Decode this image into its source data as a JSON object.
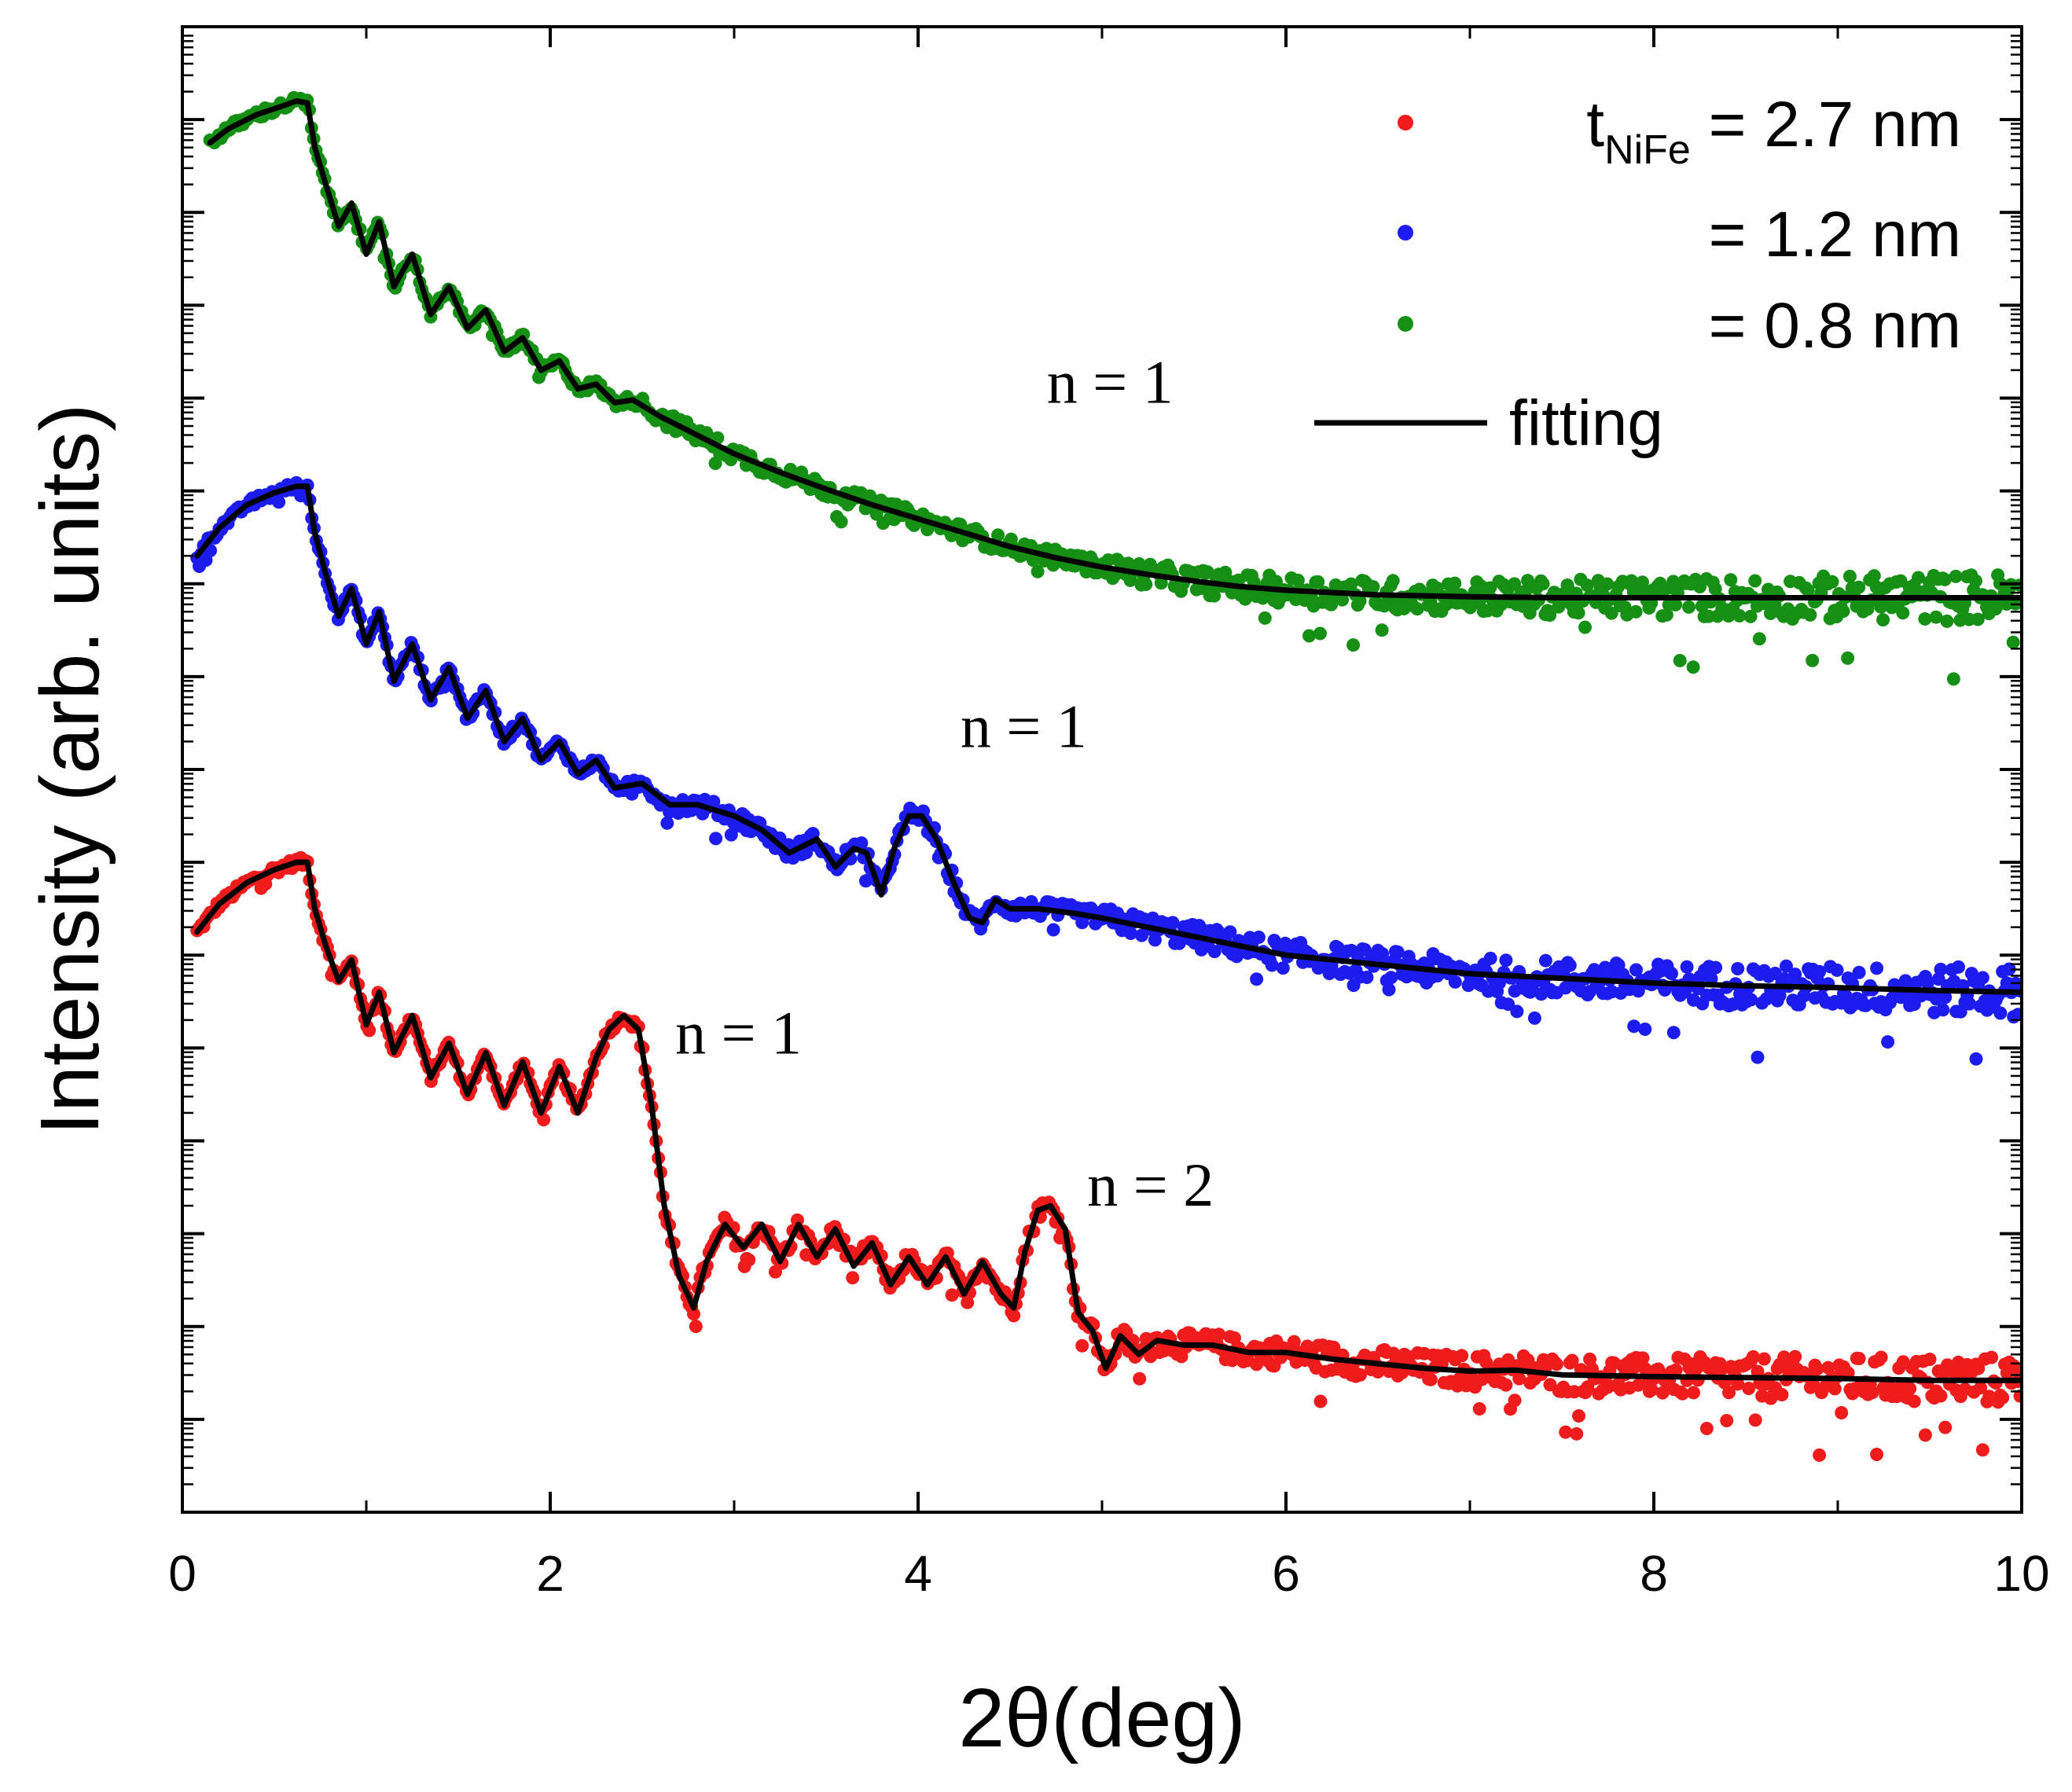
{
  "chart_data": {
    "type": "line",
    "title": "",
    "xlabel": "2θ(deg)",
    "ylabel": "Intensity (arb. units)",
    "xlim": [
      0,
      10
    ],
    "ylim": [
      0,
      16
    ],
    "x_ticks": [
      "0",
      "2",
      "4",
      "6",
      "8",
      "10"
    ],
    "grid": false,
    "legend_position": "top-right",
    "series": [
      {
        "name": "t_NiFe = 2.7 nm",
        "legend_label": {
          "prefix": "t",
          "sub": "NiFe",
          "suffix": " = 2.7 nm"
        },
        "color": "#ee1c1c",
        "baseline": 1.5,
        "points": [
          [
            0.08,
            6.25
          ],
          [
            0.2,
            6.55
          ],
          [
            0.35,
            6.78
          ],
          [
            0.5,
            6.92
          ],
          [
            0.62,
            7.0
          ],
          [
            0.68,
            7.0
          ],
          [
            0.72,
            6.5
          ],
          [
            0.78,
            6.1
          ],
          [
            0.85,
            5.72
          ],
          [
            0.92,
            5.95
          ],
          [
            1.0,
            5.25
          ],
          [
            1.07,
            5.6
          ],
          [
            1.15,
            4.95
          ],
          [
            1.25,
            5.35
          ],
          [
            1.35,
            4.68
          ],
          [
            1.45,
            5.05
          ],
          [
            1.55,
            4.5
          ],
          [
            1.65,
            4.95
          ],
          [
            1.75,
            4.38
          ],
          [
            1.85,
            4.85
          ],
          [
            1.95,
            4.3
          ],
          [
            2.05,
            4.8
          ],
          [
            2.15,
            4.3
          ],
          [
            2.25,
            4.9
          ],
          [
            2.32,
            5.2
          ],
          [
            2.4,
            5.35
          ],
          [
            2.48,
            5.2
          ],
          [
            2.55,
            4.4
          ],
          [
            2.62,
            3.3
          ],
          [
            2.7,
            2.55
          ],
          [
            2.78,
            2.2
          ],
          [
            2.85,
            2.7
          ],
          [
            2.95,
            3.1
          ],
          [
            3.05,
            2.85
          ],
          [
            3.15,
            3.1
          ],
          [
            3.25,
            2.7
          ],
          [
            3.35,
            3.1
          ],
          [
            3.45,
            2.75
          ],
          [
            3.55,
            3.05
          ],
          [
            3.65,
            2.65
          ],
          [
            3.75,
            2.9
          ],
          [
            3.85,
            2.45
          ],
          [
            3.95,
            2.75
          ],
          [
            4.05,
            2.45
          ],
          [
            4.15,
            2.75
          ],
          [
            4.25,
            2.35
          ],
          [
            4.35,
            2.7
          ],
          [
            4.45,
            2.35
          ],
          [
            4.52,
            2.2
          ],
          [
            4.58,
            2.8
          ],
          [
            4.65,
            3.25
          ],
          [
            4.72,
            3.3
          ],
          [
            4.8,
            3.05
          ],
          [
            4.87,
            2.15
          ],
          [
            4.95,
            1.95
          ],
          [
            5.02,
            1.55
          ],
          [
            5.1,
            1.9
          ],
          [
            5.2,
            1.7
          ],
          [
            5.3,
            1.85
          ],
          [
            5.45,
            1.8
          ],
          [
            5.6,
            1.8
          ],
          [
            5.8,
            1.72
          ],
          [
            6.0,
            1.72
          ],
          [
            6.25,
            1.65
          ],
          [
            6.5,
            1.6
          ],
          [
            6.75,
            1.55
          ],
          [
            7.0,
            1.52
          ],
          [
            7.25,
            1.53
          ],
          [
            7.5,
            1.48
          ],
          [
            7.75,
            1.47
          ],
          [
            8.0,
            1.46
          ],
          [
            8.5,
            1.45
          ],
          [
            9.0,
            1.44
          ],
          [
            9.5,
            1.42
          ],
          [
            10.0,
            1.42
          ]
        ]
      },
      {
        "name": "= 1.2 nm",
        "legend_label": {
          "prefix": "",
          "sub": "",
          "suffix": "= 1.2 nm"
        },
        "color": "#1c1cee",
        "baseline": 5.6,
        "points": [
          [
            0.08,
            10.3
          ],
          [
            0.2,
            10.6
          ],
          [
            0.35,
            10.85
          ],
          [
            0.5,
            10.98
          ],
          [
            0.62,
            11.05
          ],
          [
            0.68,
            11.05
          ],
          [
            0.72,
            10.55
          ],
          [
            0.78,
            10.1
          ],
          [
            0.85,
            9.65
          ],
          [
            0.92,
            9.95
          ],
          [
            1.0,
            9.35
          ],
          [
            1.07,
            9.7
          ],
          [
            1.15,
            8.95
          ],
          [
            1.25,
            9.35
          ],
          [
            1.35,
            8.75
          ],
          [
            1.45,
            9.1
          ],
          [
            1.55,
            8.55
          ],
          [
            1.65,
            8.85
          ],
          [
            1.75,
            8.3
          ],
          [
            1.85,
            8.55
          ],
          [
            1.95,
            8.1
          ],
          [
            2.05,
            8.3
          ],
          [
            2.15,
            7.95
          ],
          [
            2.25,
            8.1
          ],
          [
            2.35,
            7.8
          ],
          [
            2.5,
            7.85
          ],
          [
            2.65,
            7.62
          ],
          [
            2.8,
            7.62
          ],
          [
            3.0,
            7.5
          ],
          [
            3.15,
            7.35
          ],
          [
            3.3,
            7.1
          ],
          [
            3.45,
            7.25
          ],
          [
            3.55,
            6.95
          ],
          [
            3.65,
            7.15
          ],
          [
            3.72,
            7.1
          ],
          [
            3.8,
            6.65
          ],
          [
            3.87,
            7.15
          ],
          [
            3.95,
            7.5
          ],
          [
            4.02,
            7.5
          ],
          [
            4.1,
            7.25
          ],
          [
            4.2,
            6.75
          ],
          [
            4.28,
            6.4
          ],
          [
            4.35,
            6.35
          ],
          [
            4.42,
            6.6
          ],
          [
            4.5,
            6.5
          ],
          [
            4.65,
            6.5
          ],
          [
            4.85,
            6.45
          ],
          [
            5.0,
            6.4
          ],
          [
            5.25,
            6.3
          ],
          [
            5.5,
            6.2
          ],
          [
            5.75,
            6.1
          ],
          [
            6.0,
            6.0
          ],
          [
            6.25,
            5.95
          ],
          [
            6.5,
            5.9
          ],
          [
            6.75,
            5.85
          ],
          [
            7.0,
            5.8
          ],
          [
            7.5,
            5.75
          ],
          [
            8.0,
            5.7
          ],
          [
            8.5,
            5.67
          ],
          [
            9.0,
            5.65
          ],
          [
            9.5,
            5.62
          ],
          [
            10.0,
            5.6
          ]
        ]
      },
      {
        "name": "= 0.8 nm",
        "legend_label": {
          "prefix": "",
          "sub": "",
          "suffix": "= 0.8 nm"
        },
        "color": "#159015",
        "baseline": 9.85,
        "points": [
          [
            0.15,
            14.75
          ],
          [
            0.25,
            14.9
          ],
          [
            0.4,
            15.05
          ],
          [
            0.55,
            15.15
          ],
          [
            0.62,
            15.2
          ],
          [
            0.68,
            15.18
          ],
          [
            0.72,
            14.7
          ],
          [
            0.78,
            14.3
          ],
          [
            0.85,
            13.85
          ],
          [
            0.92,
            14.1
          ],
          [
            1.0,
            13.55
          ],
          [
            1.07,
            13.9
          ],
          [
            1.15,
            13.2
          ],
          [
            1.25,
            13.55
          ],
          [
            1.35,
            12.9
          ],
          [
            1.45,
            13.2
          ],
          [
            1.55,
            12.75
          ],
          [
            1.65,
            12.95
          ],
          [
            1.75,
            12.5
          ],
          [
            1.85,
            12.65
          ],
          [
            1.95,
            12.3
          ],
          [
            2.05,
            12.4
          ],
          [
            2.15,
            12.1
          ],
          [
            2.25,
            12.15
          ],
          [
            2.35,
            11.95
          ],
          [
            2.45,
            11.98
          ],
          [
            2.6,
            11.8
          ],
          [
            2.8,
            11.6
          ],
          [
            3.0,
            11.4
          ],
          [
            3.25,
            11.2
          ],
          [
            3.5,
            11.02
          ],
          [
            3.75,
            10.85
          ],
          [
            4.0,
            10.7
          ],
          [
            4.25,
            10.55
          ],
          [
            4.5,
            10.4
          ],
          [
            4.75,
            10.28
          ],
          [
            5.0,
            10.18
          ],
          [
            5.25,
            10.1
          ],
          [
            5.5,
            10.03
          ],
          [
            5.75,
            9.97
          ],
          [
            6.0,
            9.93
          ],
          [
            6.5,
            9.88
          ],
          [
            7.0,
            9.86
          ],
          [
            7.5,
            9.85
          ],
          [
            8.0,
            9.85
          ],
          [
            9.0,
            9.85
          ],
          [
            10.0,
            9.85
          ]
        ]
      }
    ],
    "fit": {
      "name": "fitting",
      "color": "#000000"
    },
    "annotations": [
      {
        "text": "n = 1",
        "x": 4.7,
        "y": 11.95
      },
      {
        "text": "n = 1",
        "x": 4.23,
        "y": 8.24
      },
      {
        "text": "n = 1",
        "x": 2.68,
        "y": 4.94
      },
      {
        "text": "n = 2",
        "x": 4.92,
        "y": 3.3
      }
    ]
  }
}
